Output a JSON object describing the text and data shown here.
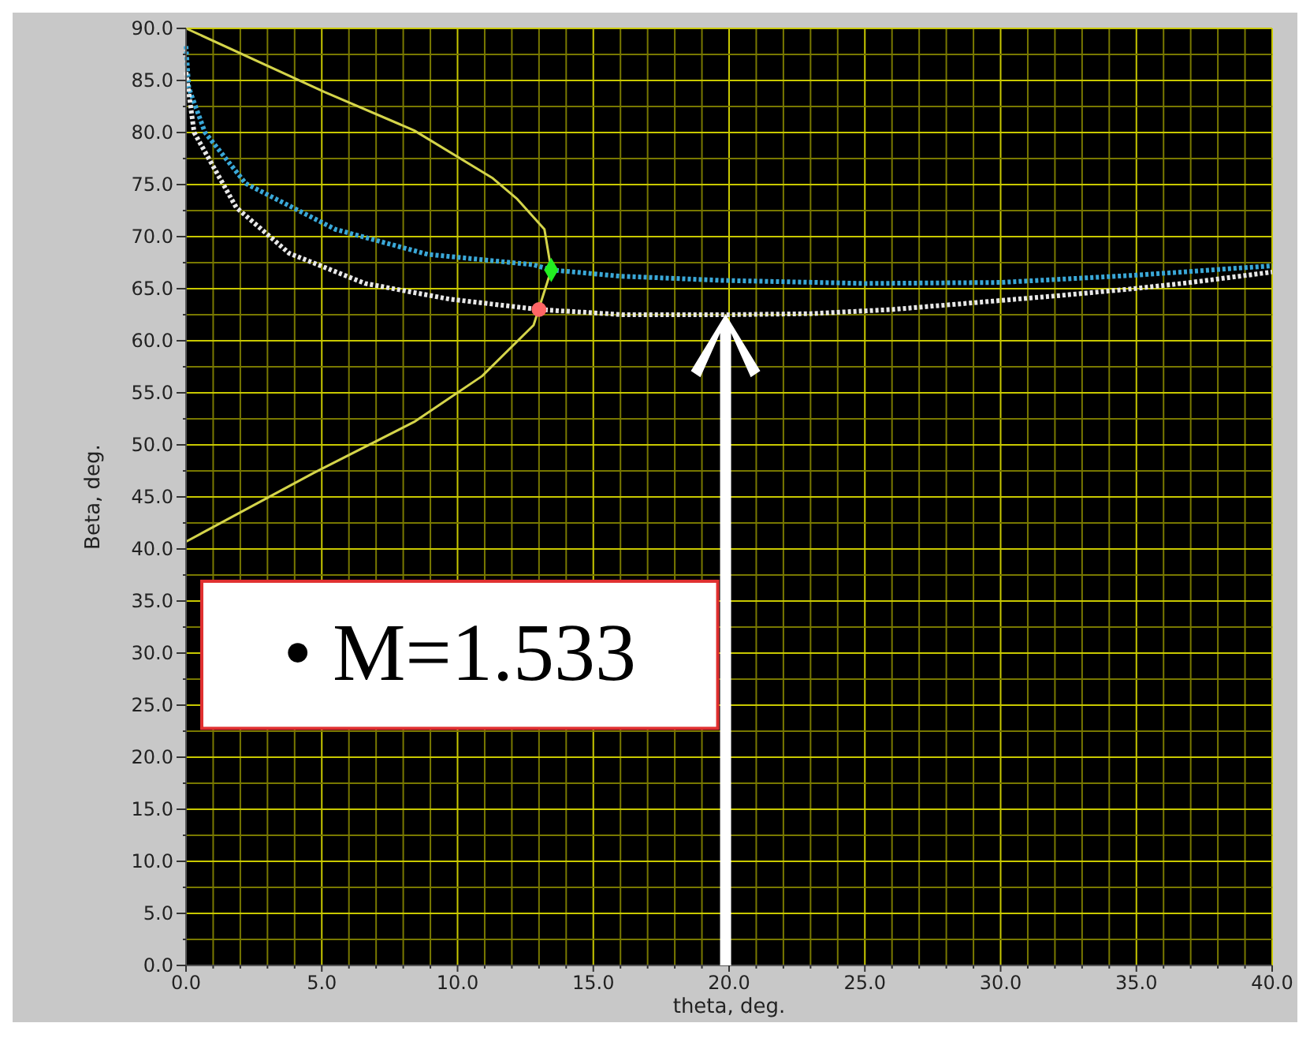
{
  "chart_data": {
    "type": "line",
    "xlabel": "theta, deg.",
    "ylabel": "Beta, deg.",
    "xlim": [
      0,
      40
    ],
    "ylim": [
      0,
      90
    ],
    "xticks": [
      {
        "value": 0,
        "label": "0.0"
      },
      {
        "value": 1,
        "label": null
      },
      {
        "value": 2,
        "label": null
      },
      {
        "value": 3,
        "label": null
      },
      {
        "value": 4,
        "label": null
      },
      {
        "value": 5,
        "label": "5.0"
      },
      {
        "value": 6,
        "label": null
      },
      {
        "value": 7,
        "label": null
      },
      {
        "value": 8,
        "label": null
      },
      {
        "value": 9,
        "label": null
      },
      {
        "value": 10,
        "label": "10.0"
      },
      {
        "value": 11,
        "label": null
      },
      {
        "value": 12,
        "label": null
      },
      {
        "value": 13,
        "label": null
      },
      {
        "value": 14,
        "label": null
      },
      {
        "value": 15,
        "label": "15.0"
      },
      {
        "value": 16,
        "label": null
      },
      {
        "value": 17,
        "label": null
      },
      {
        "value": 18,
        "label": null
      },
      {
        "value": 19,
        "label": null
      },
      {
        "value": 20,
        "label": "20.0"
      },
      {
        "value": 21,
        "label": null
      },
      {
        "value": 22,
        "label": null
      },
      {
        "value": 23,
        "label": null
      },
      {
        "value": 24,
        "label": null
      },
      {
        "value": 25,
        "label": "25.0"
      },
      {
        "value": 26,
        "label": null
      },
      {
        "value": 27,
        "label": null
      },
      {
        "value": 28,
        "label": null
      },
      {
        "value": 29,
        "label": null
      },
      {
        "value": 30,
        "label": "30.0"
      },
      {
        "value": 31,
        "label": null
      },
      {
        "value": 32,
        "label": null
      },
      {
        "value": 33,
        "label": null
      },
      {
        "value": 34,
        "label": null
      },
      {
        "value": 35,
        "label": "35.0"
      },
      {
        "value": 36,
        "label": null
      },
      {
        "value": 37,
        "label": null
      },
      {
        "value": 38,
        "label": null
      },
      {
        "value": 39,
        "label": null
      },
      {
        "value": 40,
        "label": "40.0"
      }
    ],
    "yticks": [
      {
        "value": 0,
        "label": "0.0"
      },
      {
        "value": 2.5,
        "label": null
      },
      {
        "value": 5,
        "label": "5.0"
      },
      {
        "value": 7.5,
        "label": null
      },
      {
        "value": 10,
        "label": "10.0"
      },
      {
        "value": 12.5,
        "label": null
      },
      {
        "value": 15,
        "label": "15.0"
      },
      {
        "value": 17.5,
        "label": null
      },
      {
        "value": 20,
        "label": "20.0"
      },
      {
        "value": 22.5,
        "label": null
      },
      {
        "value": 25,
        "label": "25.0"
      },
      {
        "value": 27.5,
        "label": null
      },
      {
        "value": 30,
        "label": "30.0"
      },
      {
        "value": 32.5,
        "label": null
      },
      {
        "value": 35,
        "label": "35.0"
      },
      {
        "value": 37.5,
        "label": null
      },
      {
        "value": 40,
        "label": "40.0"
      },
      {
        "value": 42.5,
        "label": null
      },
      {
        "value": 45,
        "label": "45.0"
      },
      {
        "value": 47.5,
        "label": null
      },
      {
        "value": 50,
        "label": "50.0"
      },
      {
        "value": 52.5,
        "label": null
      },
      {
        "value": 55,
        "label": "55.0"
      },
      {
        "value": 57.5,
        "label": null
      },
      {
        "value": 60,
        "label": "60.0"
      },
      {
        "value": 62.5,
        "label": null
      },
      {
        "value": 65,
        "label": "65.0"
      },
      {
        "value": 67.5,
        "label": null
      },
      {
        "value": 70,
        "label": "70.0"
      },
      {
        "value": 72.5,
        "label": null
      },
      {
        "value": 75,
        "label": "75.0"
      },
      {
        "value": 77.5,
        "label": null
      },
      {
        "value": 80,
        "label": "80.0"
      },
      {
        "value": 82.5,
        "label": null
      },
      {
        "value": 85,
        "label": "85.0"
      },
      {
        "value": 87.5,
        "label": null
      },
      {
        "value": 90,
        "label": "90.0"
      }
    ],
    "grid": true,
    "series": [
      {
        "color": "#d4d44a",
        "line_style": "solid",
        "x": [
          0,
          4.7,
          8.4,
          10.9,
          12.8,
          13.45,
          13.2,
          12.2,
          11.3,
          8.4,
          5.1,
          0
        ],
        "values": [
          40.7,
          47.3,
          52.2,
          56.6,
          61.5,
          66.8,
          70.7,
          73.6,
          75.6,
          80.2,
          83.9,
          90
        ]
      },
      {
        "color": "#3aa8d8",
        "line_style": "dotted",
        "x": [
          0,
          0.1,
          0.7,
          2.2,
          5.5,
          8.9,
          12.8,
          13.45,
          16,
          19.7,
          25,
          30,
          35,
          40
        ],
        "values": [
          88.3,
          84.3,
          80,
          75.1,
          70.7,
          68.3,
          67.3,
          66.8,
          66.2,
          65.8,
          65.5,
          65.6,
          66.3,
          67.2
        ]
      },
      {
        "color": "#e8e8e8",
        "line_style": "dotted",
        "x": [
          0,
          0.3,
          1.85,
          3.8,
          6.6,
          9.7,
          13,
          16.1,
          20,
          23,
          26,
          29.7,
          32,
          34.9,
          37,
          40
        ],
        "values": [
          85.8,
          80,
          72.8,
          68.4,
          65.5,
          64,
          63,
          62.5,
          62.5,
          62.6,
          63,
          63.8,
          64.3,
          65,
          65.6,
          66.6
        ]
      },
      {
        "type": "scatter",
        "color": "#22ee22",
        "marker": "diamond",
        "x": [
          13.45
        ],
        "values": [
          66.8
        ]
      },
      {
        "type": "scatter",
        "color": "#ff6666",
        "marker": "circle",
        "x": [
          13.0
        ],
        "values": [
          63.0
        ]
      }
    ],
    "annotations": [
      "• M=1.533"
    ]
  }
}
